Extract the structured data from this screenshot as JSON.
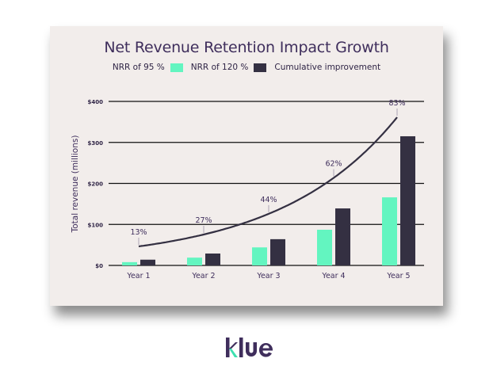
{
  "logo": {
    "text": "klue"
  },
  "colors": {
    "nrr95": "#63f5c0",
    "nrr120": "#343042",
    "curve": "#343042",
    "grid": "#111111",
    "text": "#3f2e5c"
  },
  "chart_data": {
    "type": "bar",
    "title": "Net Revenue Retention Impact Growth",
    "ylabel": "Total revenue (millions)",
    "xlabel": "",
    "ylim": [
      0,
      400
    ],
    "yticks": [
      0,
      100,
      200,
      300,
      400
    ],
    "ytick_labels": [
      "$0",
      "$100",
      "$200",
      "$300",
      "$400"
    ],
    "grid": true,
    "legend_position": "top-center",
    "legend": [
      "NRR of 95 %",
      "NRR of 120 %",
      "Cumulative improvement"
    ],
    "categories": [
      "Year 1",
      "Year 2",
      "Year 3",
      "Year 4",
      "Year 5"
    ],
    "series": [
      {
        "name": "NRR of 95 %",
        "type": "bar",
        "values": [
          8,
          19,
          44,
          87,
          166
        ]
      },
      {
        "name": "NRR of 120 %",
        "type": "bar",
        "values": [
          14,
          29,
          64,
          139,
          315
        ]
      },
      {
        "name": "Cumulative improvement",
        "type": "line",
        "values": [
          13,
          27,
          44,
          62,
          83
        ],
        "labels": [
          "13%",
          "27%",
          "44%",
          "62%",
          "83%"
        ]
      }
    ]
  }
}
